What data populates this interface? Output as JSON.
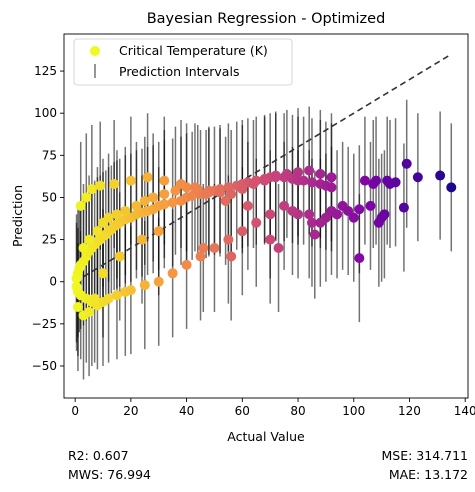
{
  "chart_data": {
    "type": "scatter",
    "title": "Bayesian Regression - Optimized",
    "xlabel": "Actual Value",
    "ylabel": "Prediction",
    "xlim": [
      -4,
      141
    ],
    "ylim": [
      -69,
      147
    ],
    "x_ticks": [
      0,
      20,
      40,
      60,
      80,
      100,
      120,
      140
    ],
    "y_ticks": [
      -50,
      -25,
      0,
      25,
      50,
      75,
      100,
      125
    ],
    "grid": false,
    "legend": {
      "position": "top-left",
      "entries": [
        "Critical Temperature (K)",
        "Prediction Intervals"
      ]
    },
    "colormap": "plasma",
    "color_range": [
      0,
      140
    ],
    "reference_line": {
      "style": "dashed",
      "x": [
        0,
        135
      ],
      "y": [
        0,
        135
      ]
    },
    "series": [
      {
        "name": "Critical Temperature (K)",
        "x": [
          0.5,
          1,
          1.5,
          2,
          3,
          4,
          5,
          6,
          7,
          8,
          9,
          10,
          11,
          12,
          13,
          14,
          15,
          16,
          18,
          20,
          22,
          24,
          26,
          28,
          30,
          32,
          35,
          38,
          40,
          42,
          45,
          48,
          50,
          52,
          55,
          58,
          60,
          62,
          65,
          68,
          70,
          72,
          75,
          78,
          80,
          82,
          85,
          88,
          90,
          92,
          0.5,
          1,
          2,
          4,
          6,
          8,
          10,
          12,
          15,
          18,
          20,
          25,
          30,
          35,
          40,
          45,
          50,
          55,
          60,
          65,
          70,
          75,
          80,
          85,
          90,
          92,
          3,
          5,
          8,
          10,
          12,
          15,
          18,
          22,
          25,
          28,
          32,
          36,
          40,
          44,
          48,
          52,
          56,
          60,
          64,
          68,
          72,
          76,
          80,
          84,
          88,
          92,
          2,
          4,
          6,
          9,
          14,
          20,
          26,
          32,
          38,
          43,
          47,
          54,
          62,
          78,
          84,
          88,
          1,
          3,
          5,
          7,
          10,
          16,
          24,
          30,
          46,
          56,
          70,
          73,
          86,
          94,
          96,
          98,
          100,
          102,
          104,
          106,
          107,
          108,
          109,
          110,
          111,
          112,
          113,
          115,
          118,
          119,
          123,
          131,
          135,
          102
        ],
        "y": [
          2,
          5,
          8,
          10,
          12,
          15,
          18,
          20,
          22,
          24,
          25,
          27,
          28,
          30,
          31,
          33,
          34,
          35,
          37,
          38,
          40,
          41,
          42,
          43,
          45,
          46,
          47,
          48,
          50,
          51,
          52,
          53,
          54,
          55,
          56,
          57,
          58,
          59,
          60,
          61,
          62,
          62,
          62,
          61,
          60,
          60,
          59,
          58,
          57,
          56,
          -3,
          -6,
          -8,
          -10,
          -12,
          -14,
          -12,
          -10,
          -8,
          -6,
          -5,
          -2,
          0,
          5,
          10,
          15,
          20,
          25,
          30,
          35,
          40,
          45,
          40,
          35,
          38,
          42,
          20,
          25,
          30,
          35,
          38,
          40,
          42,
          45,
          48,
          50,
          52,
          54,
          56,
          55,
          54,
          53,
          52,
          55,
          58,
          60,
          63,
          64,
          65,
          66,
          64,
          62,
          45,
          50,
          55,
          57,
          58,
          60,
          62,
          60,
          58,
          56,
          52,
          48,
          45,
          42,
          40,
          35,
          -15,
          -20,
          -18,
          -10,
          5,
          15,
          25,
          30,
          20,
          15,
          25,
          20,
          28,
          40,
          45,
          42,
          38,
          43,
          60,
          45,
          58,
          60,
          35,
          38,
          40,
          60,
          58,
          59,
          44,
          70,
          62,
          63,
          56,
          14
        ],
        "error": [
          38,
          38,
          38,
          38,
          38,
          38,
          38,
          38,
          38,
          38,
          38,
          38,
          38,
          38,
          38,
          38,
          38,
          38,
          38,
          38,
          38,
          38,
          38,
          38,
          38,
          38,
          38,
          38,
          38,
          38,
          38,
          38,
          38,
          38,
          38,
          38,
          38,
          38,
          38,
          38,
          38,
          38,
          38,
          38,
          38,
          38,
          38,
          38,
          38,
          38,
          38,
          38,
          38,
          38,
          38,
          38,
          38,
          38,
          38,
          38,
          38,
          38,
          38,
          38,
          38,
          38,
          38,
          38,
          38,
          38,
          38,
          38,
          38,
          38,
          38,
          38,
          38,
          38,
          38,
          38,
          38,
          38,
          38,
          38,
          38,
          38,
          38,
          38,
          38,
          38,
          38,
          38,
          38,
          38,
          38,
          38,
          38,
          38,
          38,
          38,
          38,
          38,
          38,
          38,
          38,
          38,
          38,
          38,
          38,
          38,
          38,
          38,
          38,
          38,
          38,
          38,
          38,
          38,
          38,
          38,
          38,
          38,
          38,
          38,
          38,
          38,
          38,
          38,
          38,
          38,
          38,
          38,
          38,
          38,
          38,
          38,
          38,
          38,
          38,
          38,
          38,
          38,
          38,
          38,
          38,
          38,
          38,
          38,
          38,
          38,
          38,
          38
        ]
      }
    ],
    "metrics": {
      "r2": "R2: 0.607",
      "mws": "MWS: 76.994",
      "mse": "MSE: 314.711",
      "mae": "MAE: 13.172"
    }
  }
}
